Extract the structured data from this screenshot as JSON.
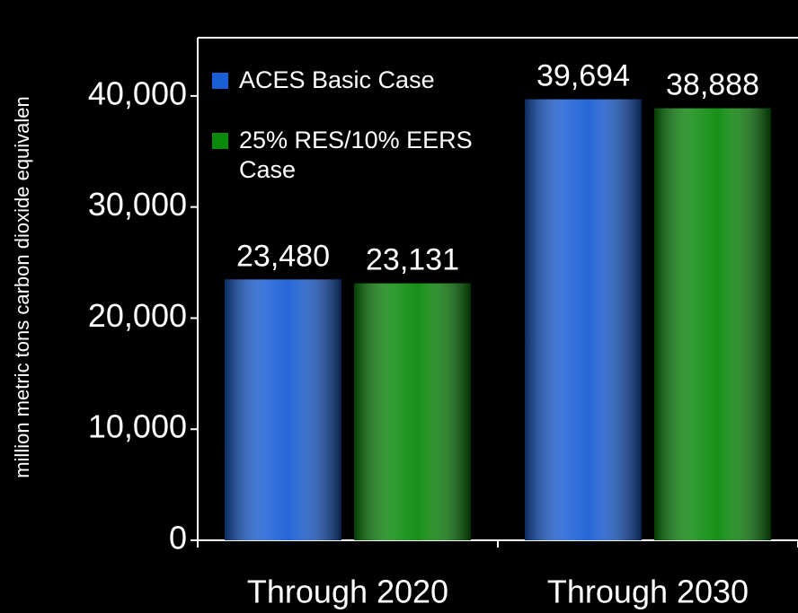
{
  "chart_data": {
    "type": "bar",
    "y_label": "million metric tons carbon dioxide equivalen",
    "categories": [
      "Through 2020",
      "Through 2030"
    ],
    "series": [
      {
        "name": "ACES Basic Case",
        "color": "#1a5fd6",
        "values": [
          23480,
          39694
        ],
        "value_labels": [
          "23,480",
          "39,694"
        ]
      },
      {
        "name": "25% RES/10% EERS Case",
        "color": "#0b8a0b",
        "values": [
          23131,
          38888
        ],
        "value_labels": [
          "23,131",
          "38,888"
        ]
      }
    ],
    "ylim": [
      0,
      45000
    ],
    "yticks": [
      0,
      {
        "value": 10000,
        "label": "10,000"
      },
      {
        "value": 20000,
        "label": "20,000"
      },
      {
        "value": 30000,
        "label": "30,000"
      },
      {
        "value": 40000,
        "label": "40,000"
      }
    ],
    "legend": "upper left"
  }
}
